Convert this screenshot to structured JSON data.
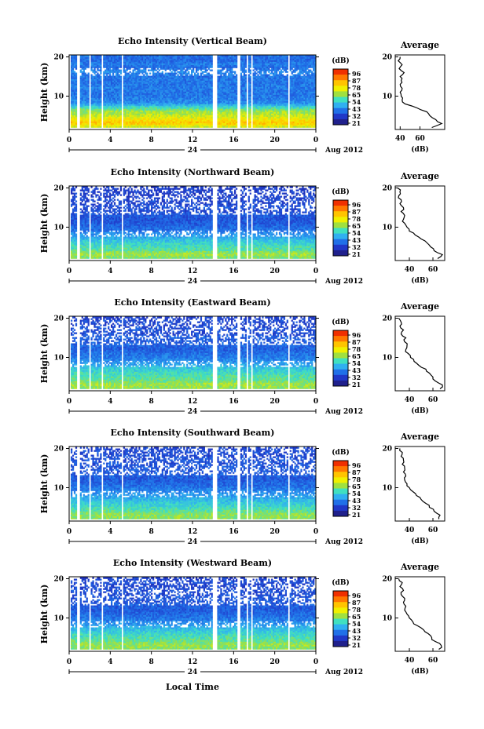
{
  "figure": {
    "bottom_label": "Local Time",
    "colorbar_unit": "(dB)",
    "colorbar_ticks": [
      "96",
      "87",
      "78",
      "65",
      "54",
      "43",
      "32",
      "21"
    ],
    "colorbar_colors": [
      "#f03000",
      "#ff7800",
      "#ffc400",
      "#f0f000",
      "#a0e040",
      "#40e0c0",
      "#30b0f0",
      "#2070e8",
      "#2038c8",
      "#20208c"
    ],
    "date_label": "Aug 2012",
    "day_label": "24",
    "time_ticks": [
      "0",
      "4",
      "8",
      "12",
      "16",
      "20",
      "0"
    ],
    "height_label": "Height (km)",
    "height_ticks": [
      "20",
      "10"
    ],
    "avg_title": "Average",
    "avg_unit": "(dB)"
  },
  "chart_data": [
    {
      "type": "heatmap",
      "title": "Echo Intensity (Vertical Beam)",
      "xlabel": "Local Time",
      "ylabel": "Height (km)",
      "x_range_hours": [
        0,
        24
      ],
      "y_range_km": [
        1.5,
        20.5
      ],
      "color_range_dB": [
        21,
        96
      ],
      "data_gaps_hours": [
        [
          0.0,
          0.2
        ],
        [
          0.8,
          1.0
        ],
        [
          1.9,
          2.1
        ],
        [
          3.2,
          3.3
        ],
        [
          5.1,
          5.3
        ],
        [
          13.9,
          14.4
        ],
        [
          16.4,
          16.6
        ],
        [
          17.2,
          17.4
        ],
        [
          17.7,
          17.9
        ],
        [
          21.3,
          21.5
        ]
      ],
      "profile_km": [
        2,
        3,
        4,
        5,
        6,
        7,
        8,
        9,
        10,
        11,
        12,
        13,
        14,
        15,
        16,
        17,
        18,
        19,
        20
      ],
      "profile_dB": [
        72,
        82,
        76,
        70,
        67,
        57,
        45,
        42,
        41,
        40,
        42,
        40,
        41,
        40,
        44,
        39,
        42,
        38,
        40
      ],
      "avg_xticks": [
        "40",
        "60"
      ],
      "avg_xrange": [
        35,
        85
      ]
    },
    {
      "type": "heatmap",
      "title": "Echo Intensity (Northward Beam)",
      "xlabel": "Local Time",
      "ylabel": "Height (km)",
      "x_range_hours": [
        0,
        24
      ],
      "y_range_km": [
        1.5,
        20.5
      ],
      "color_range_dB": [
        21,
        96
      ],
      "data_gaps_hours": [
        [
          0.0,
          0.2
        ],
        [
          0.8,
          1.0
        ],
        [
          1.9,
          2.1
        ],
        [
          3.2,
          3.3
        ],
        [
          5.1,
          5.3
        ],
        [
          13.9,
          14.4
        ],
        [
          16.4,
          16.6
        ],
        [
          17.2,
          17.4
        ],
        [
          17.7,
          17.9
        ],
        [
          21.3,
          21.5
        ]
      ],
      "profile_km": [
        2,
        3,
        4,
        5,
        6,
        7,
        8,
        9,
        10,
        11,
        12,
        13,
        14,
        15,
        16,
        17,
        18,
        19,
        20
      ],
      "profile_dB": [
        64,
        68,
        61,
        58,
        55,
        50,
        45,
        40,
        38,
        36,
        35,
        36,
        33,
        35,
        32,
        33,
        31,
        32,
        30
      ],
      "avg_xticks": [
        "40",
        "60"
      ],
      "avg_xrange": [
        28,
        70
      ]
    },
    {
      "type": "heatmap",
      "title": "Echo Intensity (Eastward Beam)",
      "xlabel": "Local Time",
      "ylabel": "Height (km)",
      "x_range_hours": [
        0,
        24
      ],
      "y_range_km": [
        1.5,
        20.5
      ],
      "color_range_dB": [
        21,
        96
      ],
      "data_gaps_hours": [
        [
          0.0,
          0.2
        ],
        [
          0.8,
          1.0
        ],
        [
          1.9,
          2.1
        ],
        [
          3.2,
          3.3
        ],
        [
          5.1,
          5.3
        ],
        [
          13.9,
          14.4
        ],
        [
          16.4,
          16.6
        ],
        [
          17.2,
          17.4
        ],
        [
          17.7,
          17.9
        ],
        [
          21.3,
          21.5
        ]
      ],
      "profile_km": [
        2,
        3,
        4,
        5,
        6,
        7,
        8,
        9,
        10,
        11,
        12,
        13,
        14,
        15,
        16,
        17,
        18,
        19,
        20
      ],
      "profile_dB": [
        66,
        68,
        62,
        60,
        57,
        54,
        48,
        44,
        41,
        39,
        37,
        38,
        36,
        37,
        33,
        35,
        32,
        33,
        31
      ],
      "avg_xticks": [
        "40",
        "60"
      ],
      "avg_xrange": [
        28,
        70
      ]
    },
    {
      "type": "heatmap",
      "title": "Echo Intensity (Southward Beam)",
      "xlabel": "Local Time",
      "ylabel": "Height (km)",
      "x_range_hours": [
        0,
        24
      ],
      "y_range_km": [
        1.5,
        20.5
      ],
      "color_range_dB": [
        21,
        96
      ],
      "data_gaps_hours": [
        [
          0.0,
          0.2
        ],
        [
          0.8,
          1.0
        ],
        [
          1.9,
          2.1
        ],
        [
          3.2,
          3.3
        ],
        [
          5.1,
          5.3
        ],
        [
          13.9,
          14.4
        ],
        [
          16.4,
          16.6
        ],
        [
          17.2,
          17.4
        ],
        [
          17.7,
          17.9
        ],
        [
          21.3,
          21.5
        ]
      ],
      "profile_km": [
        2,
        3,
        4,
        5,
        6,
        7,
        8,
        9,
        10,
        11,
        12,
        13,
        14,
        15,
        16,
        17,
        18,
        19,
        20
      ],
      "profile_dB": [
        65,
        66,
        61,
        57,
        54,
        50,
        46,
        43,
        40,
        38,
        36,
        37,
        35,
        36,
        34,
        35,
        33,
        34,
        32
      ],
      "avg_xticks": [
        "40",
        "60"
      ],
      "avg_xrange": [
        28,
        70
      ]
    },
    {
      "type": "heatmap",
      "title": "Echo Intensity (Westward Beam)",
      "xlabel": "Local Time",
      "ylabel": "Height (km)",
      "x_range_hours": [
        0,
        24
      ],
      "y_range_km": [
        1.5,
        20.5
      ],
      "color_range_dB": [
        21,
        96
      ],
      "data_gaps_hours": [
        [
          0.0,
          0.2
        ],
        [
          0.8,
          1.0
        ],
        [
          1.9,
          2.1
        ],
        [
          3.2,
          3.3
        ],
        [
          5.1,
          5.3
        ],
        [
          13.9,
          14.4
        ],
        [
          16.4,
          16.6
        ],
        [
          17.2,
          17.4
        ],
        [
          17.7,
          17.9
        ],
        [
          21.3,
          21.5
        ]
      ],
      "profile_km": [
        2,
        3,
        4,
        5,
        6,
        7,
        8,
        9,
        10,
        11,
        12,
        13,
        14,
        15,
        16,
        17,
        18,
        19,
        20
      ],
      "profile_dB": [
        65,
        67,
        62,
        59,
        56,
        52,
        47,
        43,
        40,
        38,
        36,
        37,
        35,
        36,
        33,
        35,
        32,
        34,
        31
      ],
      "avg_xticks": [
        "40",
        "60"
      ],
      "avg_xrange": [
        28,
        70
      ]
    }
  ]
}
